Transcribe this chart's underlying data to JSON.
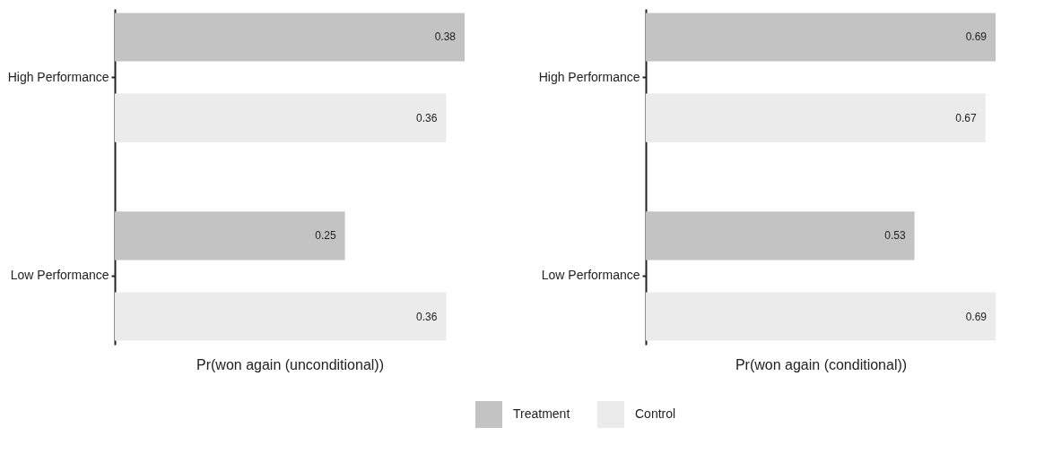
{
  "chart_data": [
    {
      "type": "bar",
      "orientation": "horizontal",
      "xlabel": "Pr(won again (unconditional))",
      "categories": [
        "High Performance",
        "Low Performance"
      ],
      "data_labels": true,
      "legend": "bottom",
      "series": [
        {
          "name": "Treatment",
          "color": "#c3c3c3",
          "values": [
            0.38,
            0.25
          ]
        },
        {
          "name": "Control",
          "color": "#ebebeb",
          "values": [
            0.36,
            0.36
          ]
        }
      ]
    },
    {
      "type": "bar",
      "orientation": "horizontal",
      "xlabel": "Pr(won again (conditional))",
      "categories": [
        "High Performance",
        "Low Performance"
      ],
      "data_labels": true,
      "legend": "bottom",
      "series": [
        {
          "name": "Treatment",
          "color": "#c3c3c3",
          "values": [
            0.69,
            0.53
          ]
        },
        {
          "name": "Control",
          "color": "#ebebeb",
          "values": [
            0.67,
            0.69
          ]
        }
      ]
    }
  ]
}
